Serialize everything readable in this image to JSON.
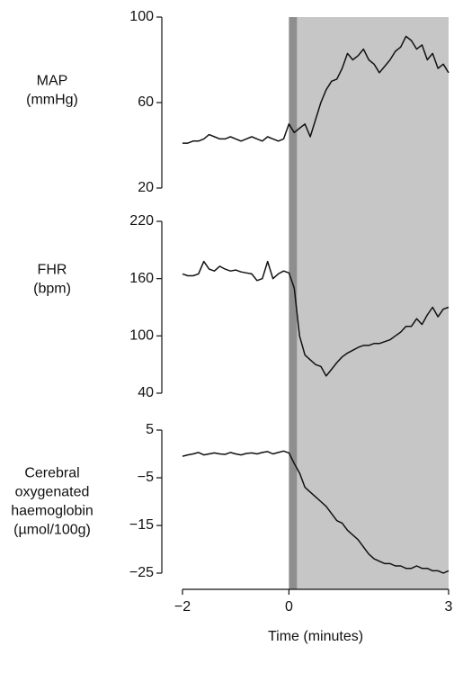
{
  "chart_data": {
    "type": "line",
    "xlabel": "Time (minutes)",
    "xlim": [
      -2,
      3
    ],
    "xticks": [
      {
        "value": -2,
        "label": "−2"
      },
      0,
      3
    ],
    "shaded": [
      {
        "xlim": [
          0,
          3
        ],
        "color": "#c6c6c6"
      },
      {
        "xlim": [
          0,
          0.15
        ],
        "color": "#8e8e8e"
      }
    ],
    "x": [
      -2.0,
      -1.9,
      -1.8,
      -1.7,
      -1.6,
      -1.5,
      -1.4,
      -1.3,
      -1.2,
      -1.1,
      -1.0,
      -0.9,
      -0.8,
      -0.7,
      -0.6,
      -0.5,
      -0.4,
      -0.3,
      -0.2,
      -0.1,
      0.0,
      0.1,
      0.2,
      0.3,
      0.4,
      0.5,
      0.6,
      0.7,
      0.8,
      0.9,
      1.0,
      1.1,
      1.2,
      1.3,
      1.4,
      1.5,
      1.6,
      1.7,
      1.8,
      1.9,
      2.0,
      2.1,
      2.2,
      2.3,
      2.4,
      2.5,
      2.6,
      2.7,
      2.8,
      2.9,
      3.0
    ],
    "panels": [
      {
        "ylabel": [
          "MAP",
          "(mmHg)"
        ],
        "ylim": [
          20,
          100
        ],
        "yticks": [
          20,
          60,
          100
        ],
        "series": [
          {
            "color": "#111111",
            "values": [
              41,
              41,
              42,
              42,
              43,
              45,
              44,
              43,
              43,
              44,
              43,
              42,
              43,
              44,
              43,
              42,
              44,
              43,
              42,
              43,
              50,
              46,
              48,
              50,
              44,
              52,
              60,
              66,
              70,
              71,
              76,
              83,
              80,
              82,
              85,
              80,
              78,
              74,
              77,
              80,
              84,
              86,
              91,
              89,
              85,
              87,
              80,
              83,
              76,
              78,
              74
            ]
          }
        ]
      },
      {
        "ylabel": [
          "FHR",
          "(bpm)"
        ],
        "ylim": [
          40,
          220
        ],
        "yticks": [
          40,
          100,
          160,
          220
        ],
        "series": [
          {
            "color": "#111111",
            "values": [
              165,
              163,
              163,
              165,
              178,
              170,
              168,
              173,
              170,
              168,
              169,
              167,
              166,
              165,
              158,
              160,
              178,
              160,
              165,
              168,
              166,
              150,
              100,
              80,
              75,
              70,
              68,
              58,
              65,
              72,
              78,
              82,
              85,
              88,
              90,
              90,
              92,
              92,
              94,
              96,
              100,
              104,
              110,
              110,
              118,
              112,
              122,
              130,
              120,
              128,
              130
            ]
          }
        ]
      },
      {
        "ylabel": [
          "Cerebral",
          "oxygenated",
          "haemoglobin",
          "(µmol/100g)"
        ],
        "ylim": [
          -25,
          5
        ],
        "yticks": [
          {
            "value": -25,
            "label": "−25"
          },
          {
            "value": -15,
            "label": "−15"
          },
          {
            "value": -5,
            "label": "−5"
          },
          5
        ],
        "series": [
          {
            "color": "#111111",
            "values": [
              -0.5,
              -0.2,
              0,
              0.3,
              -0.2,
              0,
              0.2,
              0,
              -0.1,
              0.3,
              0,
              -0.2,
              0.1,
              0.2,
              0,
              0.3,
              0.5,
              0,
              0.3,
              0.6,
              0.2,
              -2,
              -4,
              -7,
              -8,
              -9,
              -10,
              -11,
              -12.5,
              -14,
              -14.5,
              -16,
              -17,
              -18,
              -19.5,
              -21,
              -22,
              -22.5,
              -23,
              -23,
              -23.5,
              -23.5,
              -24,
              -24,
              -23.5,
              -24,
              -24,
              -24.5,
              -24.5,
              -25,
              -24.5
            ]
          }
        ]
      }
    ]
  }
}
